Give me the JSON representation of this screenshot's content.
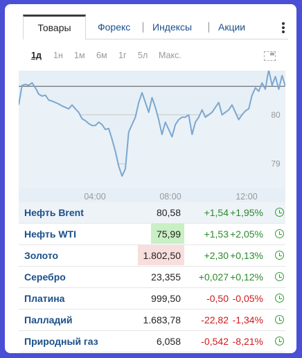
{
  "tabs": [
    {
      "label": "Товары",
      "active": true
    },
    {
      "label": "Форекс"
    },
    {
      "label": "Индексы"
    },
    {
      "label": "Акции"
    }
  ],
  "periods": [
    {
      "label": "1д",
      "active": true
    },
    {
      "label": "1н"
    },
    {
      "label": "1м"
    },
    {
      "label": "6м"
    },
    {
      "label": "1г"
    },
    {
      "label": "5л"
    },
    {
      "label": "Макс."
    }
  ],
  "chart_data": {
    "type": "area",
    "x_tick_labels": [
      "04:00",
      "08:00",
      "12:00"
    ],
    "y_tick_labels": [
      "79",
      "80"
    ],
    "reference_value": 80.58,
    "ylim": [
      78.5,
      80.9
    ],
    "x": [
      0.0,
      0.3,
      0.6,
      0.9,
      1.2,
      1.5,
      1.8,
      2.1,
      2.4,
      2.7,
      3.0,
      3.3,
      3.6,
      3.9,
      4.2,
      4.5,
      4.8,
      5.1,
      5.4,
      5.7,
      6.0,
      6.3,
      6.6,
      6.9,
      7.2,
      7.5,
      7.8,
      8.1,
      8.4,
      8.7,
      9.0,
      9.3,
      9.6,
      9.9,
      10.2,
      10.5,
      10.8,
      11.1,
      11.4,
      11.7,
      12.0,
      12.3,
      12.6,
      12.9,
      13.2,
      13.5,
      13.8,
      14.1,
      14.4,
      14.7,
      15.0,
      15.3,
      15.6,
      15.9,
      16.2,
      16.5,
      16.8,
      17.1,
      17.4,
      17.7,
      18.0,
      18.3,
      18.6,
      18.9,
      19.2,
      19.5,
      19.8,
      20.1,
      20.4,
      20.7,
      21.0,
      21.3,
      21.6,
      21.9,
      22.2,
      22.5,
      22.8,
      23.1,
      23.4,
      23.7,
      24.0
    ],
    "series": [
      {
        "values": [
          80.2,
          80.6,
          80.62,
          80.6,
          80.65,
          80.55,
          80.42,
          80.38,
          80.4,
          80.3,
          80.28,
          80.25,
          80.22,
          80.18,
          80.15,
          80.12,
          80.2,
          80.12,
          80.05,
          79.92,
          79.88,
          79.82,
          79.78,
          79.78,
          79.85,
          79.8,
          79.7,
          79.72,
          79.5,
          79.25,
          78.95,
          78.75,
          78.9,
          79.65,
          79.8,
          79.95,
          80.25,
          80.45,
          80.25,
          80.05,
          80.35,
          80.15,
          79.9,
          79.6,
          79.85,
          79.7,
          79.55,
          79.8,
          79.9,
          79.95,
          79.95,
          80.0,
          79.6,
          79.85,
          79.95,
          80.1,
          79.95,
          80.0,
          80.05,
          80.15,
          80.25,
          80.0,
          80.05,
          80.1,
          80.2,
          80.05,
          79.9,
          80.0,
          80.08,
          80.12,
          80.4,
          80.55,
          80.48,
          80.65,
          80.52,
          80.92,
          80.6,
          80.78,
          80.52,
          80.8,
          80.58
        ]
      }
    ]
  },
  "quotes": [
    {
      "name": "Нефть Brent",
      "price": "80,58",
      "change": "+1,54",
      "percent": "+1,95%",
      "direction": "up",
      "highlight": "none",
      "selected": true
    },
    {
      "name": "Нефть WTI",
      "price": "75,99",
      "change": "+1,53",
      "percent": "+2,05%",
      "direction": "up",
      "highlight": "up",
      "selected": false
    },
    {
      "name": "Золото",
      "price": "1.802,50",
      "change": "+2,30",
      "percent": "+0,13%",
      "direction": "up",
      "highlight": "down",
      "selected": false
    },
    {
      "name": "Серебро",
      "price": "23,355",
      "change": "+0,027",
      "percent": "+0,12%",
      "direction": "up",
      "highlight": "none",
      "selected": false
    },
    {
      "name": "Платина",
      "price": "999,50",
      "change": "-0,50",
      "percent": "-0,05%",
      "direction": "down",
      "highlight": "none",
      "selected": false
    },
    {
      "name": "Палладий",
      "price": "1.683,78",
      "change": "-22,82",
      "percent": "-1,34%",
      "direction": "down",
      "highlight": "none",
      "selected": false
    },
    {
      "name": "Природный газ",
      "price": "6,058",
      "change": "-0,542",
      "percent": "-8,21%",
      "direction": "down",
      "highlight": "none",
      "selected": false
    }
  ],
  "colors": {
    "accent_link": "#1a4f8a",
    "chart_line": "#7ba7d0",
    "chart_fill": "#e6eff6",
    "positive": "#2a8a2a",
    "negative": "#d0181a",
    "up_highlight": "#c9efc4",
    "down_highlight": "#f9dede",
    "page_background": "#4a4fd6"
  },
  "icons": {
    "menu": "kebab-menu-icon",
    "expand": "expand-chart-icon",
    "market_status": "clock-icon"
  }
}
